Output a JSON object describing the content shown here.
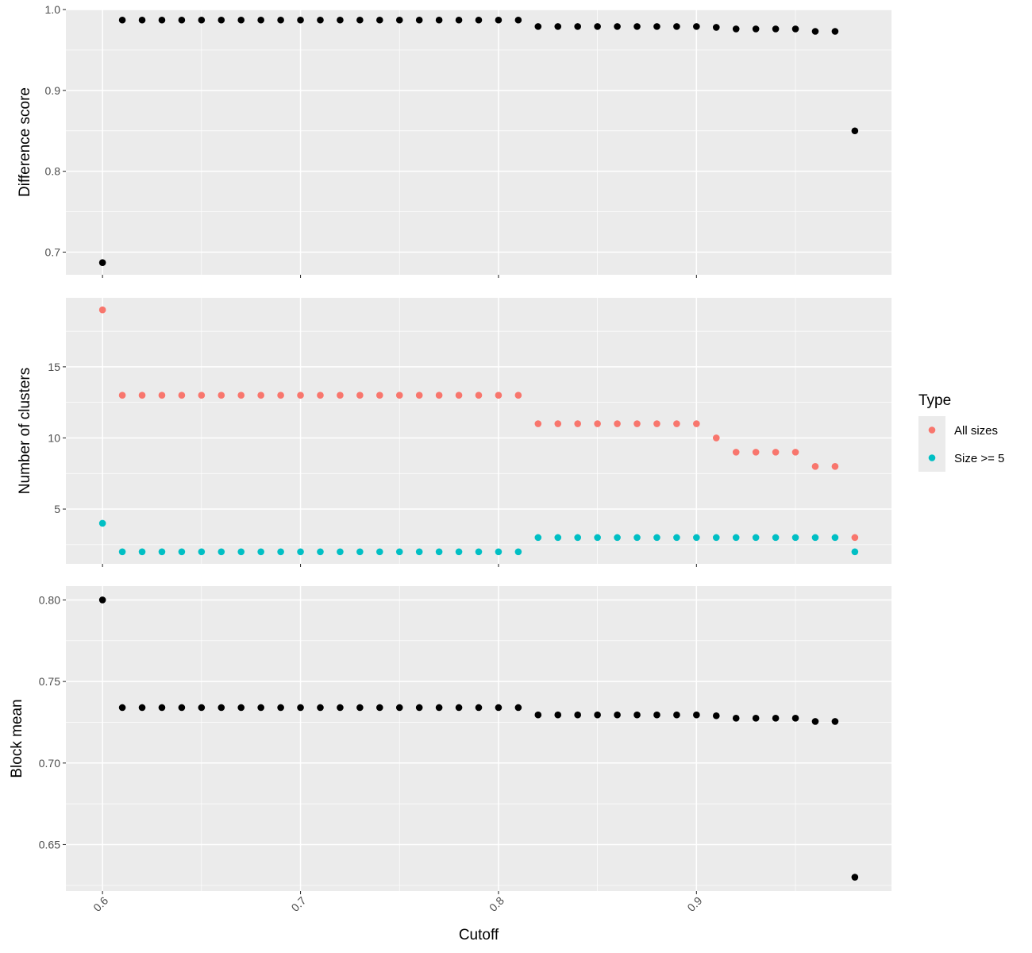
{
  "chart_data": {
    "type": "scatter",
    "x_axis": {
      "label": "Cutoff",
      "ticks": [
        0.6,
        0.7,
        0.8,
        0.9
      ],
      "tick_labels": [
        "0.6",
        "0.7",
        "0.8",
        "0.9"
      ],
      "range": [
        0.5815,
        0.9985
      ]
    },
    "x": [
      0.6,
      0.61,
      0.62,
      0.63,
      0.64,
      0.65,
      0.66,
      0.67,
      0.68,
      0.69,
      0.7,
      0.71,
      0.72,
      0.73,
      0.74,
      0.75,
      0.76,
      0.77,
      0.78,
      0.79,
      0.8,
      0.81,
      0.82,
      0.83,
      0.84,
      0.85,
      0.86,
      0.87,
      0.88,
      0.89,
      0.9,
      0.91,
      0.92,
      0.93,
      0.94,
      0.95,
      0.96,
      0.97,
      0.98
    ],
    "grid": true,
    "panels": [
      {
        "ylabel": "Difference score",
        "ylim": [
          0.672,
          1.0
        ],
        "y_ticks": [
          0.7,
          0.8,
          0.9,
          1.0
        ],
        "y_tick_labels": [
          "0.7",
          "0.8",
          "0.9",
          "1.0"
        ],
        "series": [
          {
            "color": "#000000",
            "values": [
              0.687,
              0.987,
              0.987,
              0.987,
              0.987,
              0.987,
              0.987,
              0.987,
              0.987,
              0.987,
              0.987,
              0.987,
              0.987,
              0.987,
              0.987,
              0.987,
              0.987,
              0.987,
              0.987,
              0.987,
              0.987,
              0.987,
              0.979,
              0.979,
              0.979,
              0.979,
              0.979,
              0.979,
              0.979,
              0.979,
              0.979,
              0.978,
              0.976,
              0.976,
              0.976,
              0.976,
              0.973,
              0.973,
              0.85
            ]
          }
        ]
      },
      {
        "ylabel": "Number of clusters",
        "ylim": [
          1.15,
          19.85
        ],
        "y_ticks": [
          5,
          10,
          15
        ],
        "y_tick_labels": [
          "5",
          "10",
          "15"
        ],
        "series": [
          {
            "name": "All sizes",
            "color": "#F8766D",
            "values": [
              19,
              13,
              13,
              13,
              13,
              13,
              13,
              13,
              13,
              13,
              13,
              13,
              13,
              13,
              13,
              13,
              13,
              13,
              13,
              13,
              13,
              13,
              11,
              11,
              11,
              11,
              11,
              11,
              11,
              11,
              11,
              10,
              9,
              9,
              9,
              9,
              8,
              8,
              3
            ]
          },
          {
            "name": "Size >= 5",
            "color": "#00BFC4",
            "values": [
              4,
              2,
              2,
              2,
              2,
              2,
              2,
              2,
              2,
              2,
              2,
              2,
              2,
              2,
              2,
              2,
              2,
              2,
              2,
              2,
              2,
              2,
              3,
              3,
              3,
              3,
              3,
              3,
              3,
              3,
              3,
              3,
              3,
              3,
              3,
              3,
              3,
              3,
              2
            ]
          }
        ]
      },
      {
        "ylabel": "Block mean",
        "ylim": [
          0.6215,
          0.8085
        ],
        "y_ticks": [
          0.65,
          0.7,
          0.75,
          0.8
        ],
        "y_tick_labels": [
          "0.65",
          "0.70",
          "0.75",
          "0.80"
        ],
        "series": [
          {
            "color": "#000000",
            "values": [
              0.8,
              0.734,
              0.734,
              0.734,
              0.734,
              0.734,
              0.734,
              0.734,
              0.734,
              0.734,
              0.734,
              0.734,
              0.734,
              0.734,
              0.734,
              0.734,
              0.734,
              0.734,
              0.734,
              0.734,
              0.734,
              0.734,
              0.7295,
              0.7295,
              0.7295,
              0.7295,
              0.7295,
              0.7295,
              0.7295,
              0.7295,
              0.7295,
              0.729,
              0.7275,
              0.7275,
              0.7275,
              0.7275,
              0.7255,
              0.7255,
              0.63
            ]
          }
        ]
      }
    ],
    "legend": {
      "title": "Type",
      "placement": "right",
      "entries": [
        {
          "label": "All sizes",
          "color": "#F8766D"
        },
        {
          "label": "Size >= 5",
          "color": "#00BFC4"
        }
      ]
    }
  }
}
